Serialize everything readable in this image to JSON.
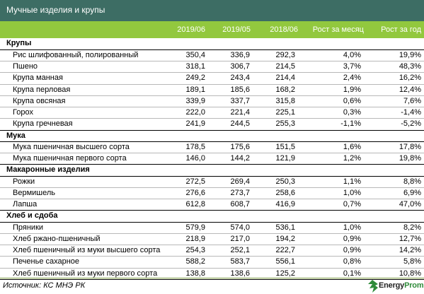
{
  "title": "Мучные изделия и крупы",
  "columns": [
    "2019/06",
    "2019/05",
    "2018/06",
    "Рост за месяц",
    "Рост за год"
  ],
  "sections": [
    {
      "name": "Крупы",
      "rows": [
        {
          "name": "Рис шлифованный, полированный",
          "v1": "350,4",
          "v2": "336,9",
          "v3": "292,3",
          "m": "4,0%",
          "y": "19,9%"
        },
        {
          "name": "Пшено",
          "v1": "318,1",
          "v2": "306,7",
          "v3": "214,5",
          "m": "3,7%",
          "y": "48,3%"
        },
        {
          "name": "Крупа манная",
          "v1": "249,2",
          "v2": "243,4",
          "v3": "214,4",
          "m": "2,4%",
          "y": "16,2%"
        },
        {
          "name": "Крупа перловая",
          "v1": "189,1",
          "v2": "185,6",
          "v3": "168,2",
          "m": "1,9%",
          "y": "12,4%"
        },
        {
          "name": "Крупа овсяная",
          "v1": "339,9",
          "v2": "337,7",
          "v3": "315,8",
          "m": "0,6%",
          "y": "7,6%"
        },
        {
          "name": "Горох",
          "v1": "222,0",
          "v2": "221,4",
          "v3": "225,1",
          "m": "0,3%",
          "y": "-1,4%"
        },
        {
          "name": "Крупа гречневая",
          "v1": "241,9",
          "v2": "244,5",
          "v3": "255,3",
          "m": "-1,1%",
          "y": "-5,2%"
        }
      ]
    },
    {
      "name": "Мука",
      "rows": [
        {
          "name": "Мука пшеничная высшего сорта",
          "v1": "178,5",
          "v2": "175,6",
          "v3": "151,5",
          "m": "1,6%",
          "y": "17,8%"
        },
        {
          "name": "Мука пшеничная первого сорта",
          "v1": "146,0",
          "v2": "144,2",
          "v3": "121,9",
          "m": "1,2%",
          "y": "19,8%"
        }
      ]
    },
    {
      "name": "Макаронные изделия",
      "rows": [
        {
          "name": "Рожки",
          "v1": "272,5",
          "v2": "269,4",
          "v3": "250,3",
          "m": "1,1%",
          "y": "8,8%"
        },
        {
          "name": "Вермишель",
          "v1": "276,6",
          "v2": "273,7",
          "v3": "258,6",
          "m": "1,0%",
          "y": "6,9%"
        },
        {
          "name": "Лапша",
          "v1": "612,8",
          "v2": "608,7",
          "v3": "416,9",
          "m": "0,7%",
          "y": "47,0%"
        }
      ]
    },
    {
      "name": "Хлеб и сдоба",
      "rows": [
        {
          "name": "Пряники",
          "v1": "579,9",
          "v2": "574,0",
          "v3": "536,1",
          "m": "1,0%",
          "y": "8,2%"
        },
        {
          "name": "Хлеб ржано-пшеничный",
          "v1": "218,9",
          "v2": "217,0",
          "v3": "194,2",
          "m": "0,9%",
          "y": "12,7%"
        },
        {
          "name": "Хлеб пшеничный из муки высшего сорта",
          "v1": "254,3",
          "v2": "252,1",
          "v3": "222,7",
          "m": "0,9%",
          "y": "14,2%"
        },
        {
          "name": "Печенье сахарное",
          "v1": "588,2",
          "v2": "583,7",
          "v3": "556,1",
          "m": "0,8%",
          "y": "5,8%"
        },
        {
          "name": "Хлеб пшеничный из муки первого сорта",
          "v1": "138,8",
          "v2": "138,6",
          "v3": "125,2",
          "m": "0,1%",
          "y": "10,8%"
        }
      ]
    }
  ],
  "source": "Источник: КС МНЭ РК",
  "logo": {
    "text_a": "Energy",
    "text_b": "Prom",
    "icon": "energyprom-logo-icon",
    "accent": "#2f8b3a"
  },
  "colors": {
    "title_bg": "#3d6d64",
    "header_bg": "#92c83e"
  }
}
